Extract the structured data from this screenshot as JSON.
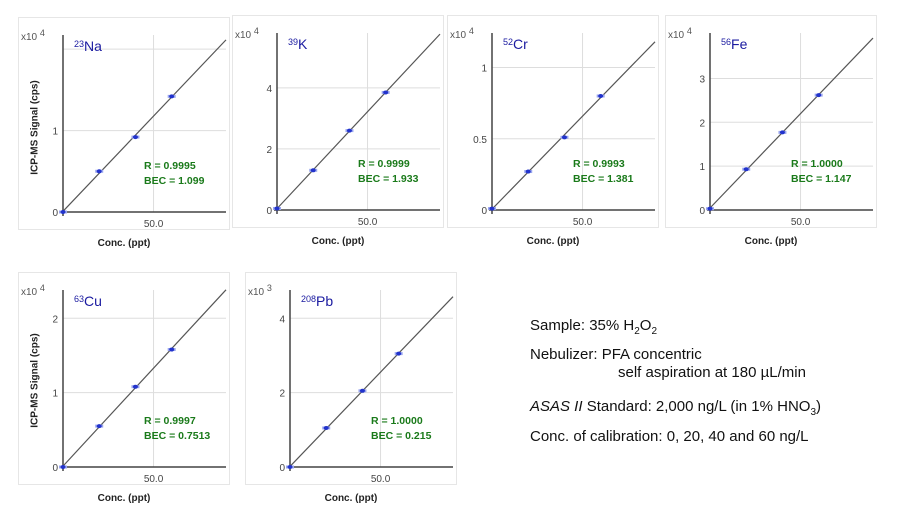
{
  "y_axis_label": "ICP-MS Signal (cps)",
  "colors": {
    "title": "#1a1aa0",
    "stats": "#1a7a1a",
    "points": "#2233cc",
    "line": "#555555",
    "grid": "#dddddd"
  },
  "chart_data": [
    {
      "type": "scatter",
      "element": "Na",
      "mass": "23",
      "exponent": "4",
      "x": [
        0,
        20,
        40,
        60
      ],
      "y": [
        0.0,
        0.5,
        0.92,
        1.42
      ],
      "xlim": [
        0,
        90
      ],
      "ylim": [
        0,
        2.1
      ],
      "y_ticks": [
        0,
        1
      ],
      "y_grid": [
        1,
        2
      ],
      "x_ticks": [
        50
      ],
      "x_tick_labels": [
        "50.0"
      ],
      "xlabel": "Conc. (ppt)",
      "ylabel": "ICP-MS Signal (cps)",
      "r": "R = 0.9995",
      "bec": "BEC = 1.099"
    },
    {
      "type": "scatter",
      "element": "K",
      "mass": "39",
      "exponent": "4",
      "x": [
        0,
        20,
        40,
        60
      ],
      "y": [
        0.05,
        1.3,
        2.6,
        3.85
      ],
      "xlim": [
        0,
        90
      ],
      "ylim": [
        0,
        5.6
      ],
      "y_ticks": [
        0,
        2,
        4
      ],
      "y_grid": [
        2,
        4
      ],
      "x_ticks": [
        50
      ],
      "x_tick_labels": [
        "50.0"
      ],
      "xlabel": "Conc. (ppt)",
      "ylabel": "",
      "r": "R = 0.9999",
      "bec": "BEC = 1.933"
    },
    {
      "type": "scatter",
      "element": "Cr",
      "mass": "52",
      "exponent": "4",
      "x": [
        0,
        20,
        40,
        60
      ],
      "y": [
        0.01,
        0.27,
        0.51,
        0.8
      ],
      "xlim": [
        0,
        90
      ],
      "ylim": [
        0,
        1.2
      ],
      "y_ticks": [
        0,
        0.5,
        1
      ],
      "y_tick_labels": [
        "0",
        "0.5",
        "1"
      ],
      "y_grid": [
        0.5,
        1
      ],
      "x_ticks": [
        50
      ],
      "x_tick_labels": [
        "50.0"
      ],
      "xlabel": "Conc. (ppt)",
      "ylabel": "",
      "r": "R = 0.9993",
      "bec": "BEC = 1.381"
    },
    {
      "type": "scatter",
      "element": "Fe",
      "mass": "56",
      "exponent": "4",
      "x": [
        0,
        20,
        40,
        60
      ],
      "y": [
        0.03,
        0.93,
        1.77,
        2.62
      ],
      "xlim": [
        0,
        90
      ],
      "ylim": [
        0,
        3.9
      ],
      "y_ticks": [
        0,
        1,
        2,
        3
      ],
      "y_grid": [
        1,
        2,
        3
      ],
      "x_ticks": [
        50
      ],
      "x_tick_labels": [
        "50.0"
      ],
      "xlabel": "Conc. (ppt)",
      "ylabel": "",
      "r": "R = 1.0000",
      "bec": "BEC = 1.147"
    },
    {
      "type": "scatter",
      "element": "Cu",
      "mass": "63",
      "exponent": "4",
      "x": [
        0,
        20,
        40,
        60
      ],
      "y": [
        0.0,
        0.55,
        1.08,
        1.58
      ],
      "xlim": [
        0,
        90
      ],
      "ylim": [
        0,
        2.3
      ],
      "y_ticks": [
        0,
        1,
        2
      ],
      "y_grid": [
        1,
        2
      ],
      "x_ticks": [
        50
      ],
      "x_tick_labels": [
        "50.0"
      ],
      "xlabel": "Conc. (ppt)",
      "ylabel": "ICP-MS Signal (cps)",
      "r": "R = 0.9997",
      "bec": "BEC = 0.7513"
    },
    {
      "type": "scatter",
      "element": "Pb",
      "mass": "208",
      "exponent": "3",
      "x": [
        0,
        20,
        40,
        60
      ],
      "y": [
        0.0,
        1.05,
        2.05,
        3.05
      ],
      "xlim": [
        0,
        90
      ],
      "ylim": [
        0,
        4.6
      ],
      "y_ticks": [
        0,
        2,
        4
      ],
      "y_grid": [
        2,
        4
      ],
      "x_ticks": [
        50
      ],
      "x_tick_labels": [
        "50.0"
      ],
      "xlabel": "Conc. (ppt)",
      "ylabel": "",
      "r": "R = 1.0000",
      "bec": "BEC = 0.215"
    }
  ],
  "info": {
    "sample": {
      "text": "Sample: 35% H",
      "sub1": "2",
      "mid": "O",
      "sub2": "2"
    },
    "nebulizer": "Nebulizer: PFA concentric",
    "nebulizer_detail": "self aspiration at 180 µL/min",
    "standard": {
      "italic": "ASAS II",
      "text": " Standard: 2,000 ng/L (in 1% HNO",
      "sub": "3",
      "end": ")"
    },
    "calibration": "Conc. of calibration: 0, 20, 40 and 60 ng/L"
  }
}
